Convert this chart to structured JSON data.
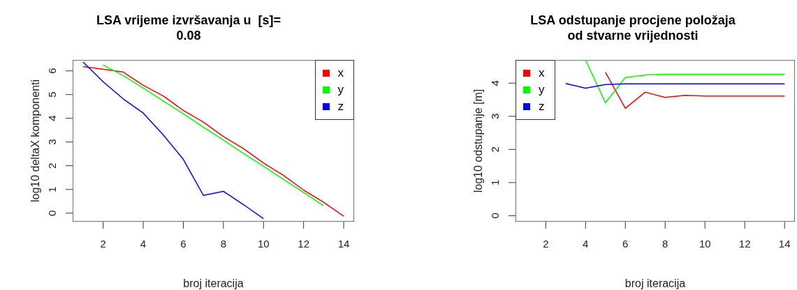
{
  "chart_data": [
    {
      "type": "line",
      "title": "LSA vrijeme izvršavanja u  [s]=\n0.08",
      "xlabel": "broj iteracija",
      "ylabel": "log10 deltaX komponenti",
      "x": [
        1,
        2,
        3,
        4,
        5,
        6,
        7,
        8,
        9,
        10,
        11,
        12,
        13,
        14
      ],
      "xlim": [
        0.48,
        14.52
      ],
      "xticks": [
        2,
        4,
        6,
        8,
        10,
        12,
        14
      ],
      "ylim": [
        -0.36,
        6.46
      ],
      "yticks": [
        0,
        1,
        2,
        3,
        4,
        5,
        6
      ],
      "legend": "top right",
      "marker": "none",
      "series": [
        {
          "name": "x",
          "color": "#ff0000",
          "values": [
            6.18,
            6.07,
            5.95,
            5.39,
            4.94,
            4.33,
            3.84,
            3.23,
            2.72,
            2.11,
            1.59,
            0.97,
            0.46,
            -0.13
          ]
        },
        {
          "name": "y",
          "color": "#00ff00",
          "values": [
            null,
            6.25,
            5.8,
            5.28,
            4.73,
            4.19,
            3.63,
            3.08,
            2.52,
            1.98,
            1.42,
            0.87,
            0.31,
            null
          ]
        },
        {
          "name": "z",
          "color": "#0000ff",
          "values": [
            6.37,
            5.54,
            4.82,
            4.22,
            3.3,
            2.27,
            0.75,
            0.92,
            0.36,
            -0.23,
            null,
            null,
            null,
            null
          ]
        }
      ]
    },
    {
      "type": "line",
      "title": "LSA odstupanje procjene položaja\nod stvarne vrijednosti",
      "xlabel": "broj iteracija",
      "ylabel": "log10 odstupanje [m]",
      "xlim": [
        0.48,
        14.52
      ],
      "xticks": [
        2,
        4,
        6,
        8,
        10,
        12,
        14
      ],
      "ylim": [
        -0.18,
        4.7
      ],
      "yticks": [
        0,
        1,
        2,
        3,
        4
      ],
      "legend": "top left",
      "marker": "none",
      "series": [
        {
          "name": "x",
          "color": "#ff0000",
          "x": [
            5,
            6,
            7,
            8,
            9,
            10,
            11,
            12,
            13,
            14
          ],
          "values": [
            4.33,
            3.24,
            3.73,
            3.57,
            3.63,
            3.61,
            3.61,
            3.61,
            3.61,
            3.61
          ]
        },
        {
          "name": "y",
          "color": "#00ff00",
          "x": [
            4,
            5,
            6,
            7,
            8,
            9,
            10,
            11,
            12,
            13,
            14
          ],
          "values": [
            4.7,
            3.41,
            4.17,
            4.25,
            4.27,
            4.27,
            4.27,
            4.27,
            4.27,
            4.27,
            4.27
          ]
        },
        {
          "name": "z",
          "color": "#0000ff",
          "x": [
            3,
            4,
            5,
            6,
            7,
            8,
            9,
            10,
            11,
            12,
            13,
            14
          ],
          "values": [
            3.99,
            3.85,
            3.96,
            3.98,
            3.98,
            3.98,
            3.98,
            3.98,
            3.98,
            3.98,
            3.98,
            3.98
          ]
        }
      ]
    }
  ]
}
